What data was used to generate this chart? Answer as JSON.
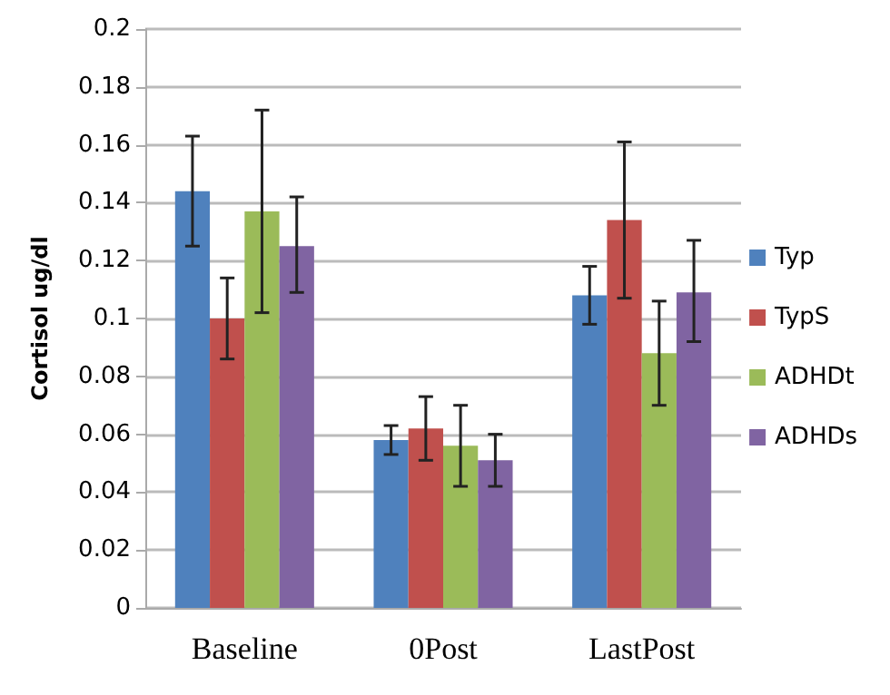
{
  "chart_data": {
    "type": "bar",
    "ylabel": "Cortisol ug/dl",
    "categories": [
      "Baseline",
      "0Post",
      "LastPost"
    ],
    "series": [
      {
        "name": "Typ",
        "color": "#4f81bd",
        "values": [
          0.144,
          0.058,
          0.108
        ],
        "errors": [
          [
            0.125,
            0.163
          ],
          [
            0.053,
            0.063
          ],
          [
            0.098,
            0.118
          ]
        ]
      },
      {
        "name": "TypS",
        "color": "#c0504d",
        "values": [
          0.1,
          0.062,
          0.134
        ],
        "errors": [
          [
            0.086,
            0.114
          ],
          [
            0.051,
            0.073
          ],
          [
            0.107,
            0.161
          ]
        ]
      },
      {
        "name": "ADHDt",
        "color": "#9bbb59",
        "values": [
          0.137,
          0.056,
          0.088
        ],
        "errors": [
          [
            0.102,
            0.172
          ],
          [
            0.042,
            0.07
          ],
          [
            0.07,
            0.106
          ]
        ]
      },
      {
        "name": "ADHDs",
        "color": "#8064a2",
        "values": [
          0.125,
          0.051,
          0.109
        ],
        "errors": [
          [
            0.109,
            0.142
          ],
          [
            0.042,
            0.06
          ],
          [
            0.092,
            0.127
          ]
        ]
      }
    ],
    "ylim": [
      0,
      0.2
    ],
    "yticks": [
      0,
      0.02,
      0.04,
      0.06,
      0.08,
      0.1,
      0.12,
      0.14,
      0.16,
      0.18,
      0.2
    ],
    "grid": "y",
    "legend": "right"
  }
}
